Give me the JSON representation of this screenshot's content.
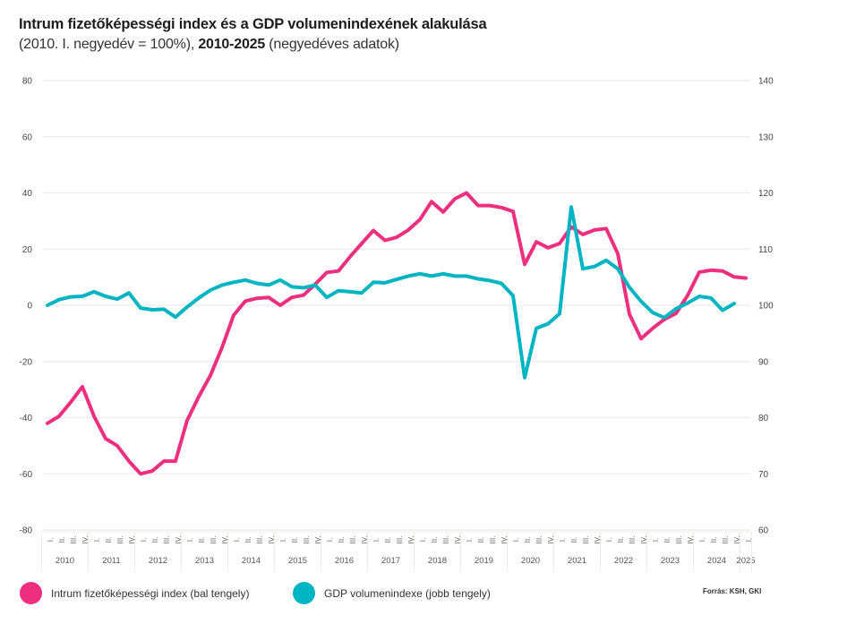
{
  "colors": {
    "intrum": "#EE2F7F",
    "gdp": "#00B5C3",
    "grid": "#EEECE9"
  },
  "chart_data": {
    "type": "line",
    "title": "Intrum fizetőképességi index és a GDP volumenindexének alakulása",
    "subtitle_parts": [
      "(2010. I. negyedév = 100%), ",
      "2010-2025",
      " (negyedéves adatok)"
    ],
    "x_quarter_labels": [
      "I.",
      "II.",
      "III.",
      "IV."
    ],
    "years": [
      "2010",
      "2011",
      "2012",
      "2013",
      "2014",
      "2015",
      "2016",
      "2017",
      "2018",
      "2019",
      "2020",
      "2021",
      "2022",
      "2023",
      "2024",
      "2025"
    ],
    "quarters_count": 61,
    "y_left": {
      "ticks": [
        80,
        60,
        40,
        20,
        0,
        -20,
        -40,
        -60,
        -80
      ],
      "range": [
        -80,
        80
      ]
    },
    "y_right": {
      "ticks": [
        140,
        130,
        120,
        110,
        100,
        90,
        80,
        70,
        60
      ],
      "range": [
        60,
        140
      ]
    },
    "grid": true,
    "legend_position": "bottom",
    "series": [
      {
        "name": "Intrum fizetőképességi index (bal tengely)",
        "axis": "left",
        "color": "#EE2F7F",
        "values": [
          -42,
          -39.5,
          -34.5,
          -29,
          -39.5,
          -47.5,
          -50,
          -55.5,
          -60,
          -59,
          -55.5,
          -55.5,
          -41,
          -32.5,
          -25,
          -15,
          -3.5,
          1.5,
          2.5,
          2.8,
          0,
          2.8,
          3.6,
          7.5,
          11.7,
          12.2,
          17.3,
          22,
          26.6,
          23.1,
          24.2,
          26.8,
          30.5,
          36.9,
          33.2,
          37.9,
          40,
          35.5,
          35.5,
          34.8,
          33.4,
          14.6,
          22.6,
          20.5,
          22,
          27.9,
          25.2,
          26.8,
          27.3,
          18.4,
          -3.2,
          -11.9,
          -8.2,
          -5,
          -2.9,
          3.5,
          11.8,
          12.5,
          12.2,
          10.1,
          9.7
        ]
      },
      {
        "name": "GDP volumenindexe (jobb tengely)",
        "axis": "right",
        "color": "#00B5C3",
        "values": [
          100,
          101,
          101.5,
          101.6,
          102.4,
          101.6,
          101.1,
          102.2,
          99.5,
          99.2,
          99.3,
          97.9,
          99.7,
          101.3,
          102.7,
          103.6,
          104.1,
          104.5,
          103.9,
          103.6,
          104.5,
          103.3,
          103.1,
          103.6,
          101.4,
          102.6,
          102.4,
          102.2,
          104.1,
          104,
          104.6,
          105.2,
          105.6,
          105.2,
          105.6,
          105.2,
          105.2,
          104.7,
          104.4,
          103.9,
          101.7,
          87.1,
          95.9,
          96.7,
          98.5,
          117.5,
          106.5,
          106.9,
          108,
          106.5,
          103.2,
          100.7,
          98.7,
          97.8,
          99.4,
          100.4,
          101.6,
          101.3,
          99.1,
          100.3
        ]
      }
    ]
  },
  "legend": {
    "intrum_label": "Intrum fizetőképességi index (bal tengely)",
    "gdp_label": "GDP volumenindexe (jobb tengely)"
  },
  "source": "Forrás: KSH, GKI"
}
